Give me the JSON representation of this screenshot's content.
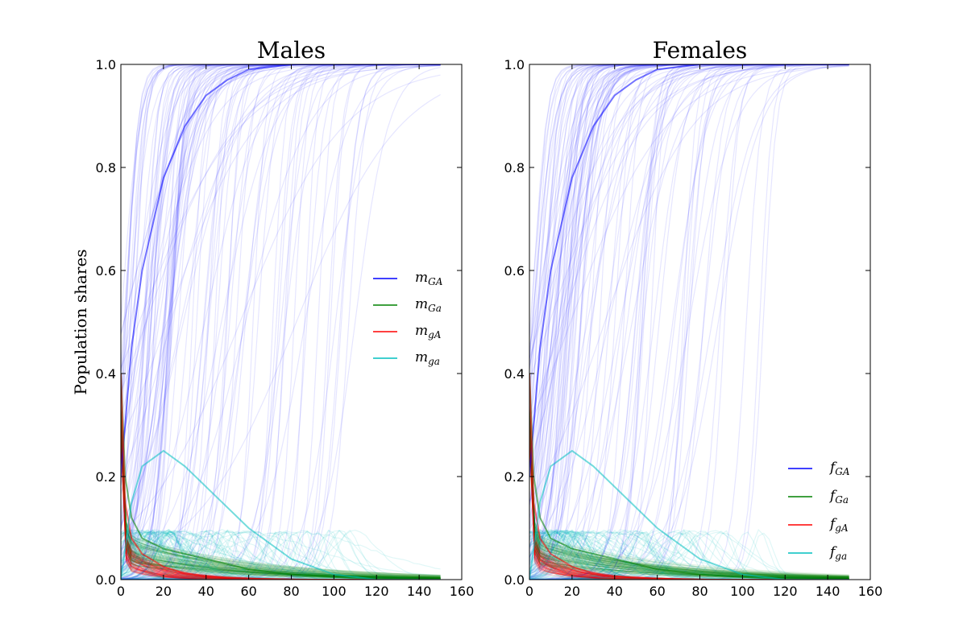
{
  "chart_data": [
    {
      "type": "line",
      "title": "Males",
      "xlabel": "",
      "ylabel": "Population shares",
      "xlim": [
        0,
        160
      ],
      "ylim": [
        0,
        1.0
      ],
      "xticks": [
        "0",
        "20",
        "40",
        "60",
        "80",
        "100",
        "120",
        "140",
        "160"
      ],
      "yticks": [
        "0.0",
        "0.2",
        "0.4",
        "0.6",
        "0.8",
        "1.0"
      ],
      "legend_position": "center-right",
      "grid": false,
      "series": [
        {
          "base": "m",
          "sub": "GA",
          "color": "#0000ff",
          "x": [
            0,
            5,
            10,
            20,
            30,
            40,
            50,
            60,
            80,
            100,
            120,
            150
          ],
          "y": [
            0.2,
            0.45,
            0.6,
            0.78,
            0.88,
            0.94,
            0.97,
            0.99,
            1.0,
            1.0,
            1.0,
            1.0
          ]
        },
        {
          "base": "m",
          "sub": "Ga",
          "color": "#008000",
          "x": [
            0,
            2,
            5,
            10,
            20,
            30,
            40,
            60,
            80,
            100,
            120,
            150
          ],
          "y": [
            0.4,
            0.2,
            0.12,
            0.08,
            0.06,
            0.05,
            0.04,
            0.02,
            0.01,
            0.005,
            0.002,
            0.0
          ]
        },
        {
          "base": "m",
          "sub": "gA",
          "color": "#ff0000",
          "x": [
            0,
            2,
            5,
            10,
            20,
            30,
            40,
            60,
            80,
            100,
            120,
            150
          ],
          "y": [
            0.4,
            0.15,
            0.08,
            0.05,
            0.025,
            0.012,
            0.006,
            0.002,
            0.0,
            0.0,
            0.0,
            0.0
          ]
        },
        {
          "base": "m",
          "sub": "ga",
          "color": "#00bfbf",
          "x": [
            0,
            5,
            10,
            20,
            30,
            40,
            60,
            80,
            100,
            120,
            150
          ],
          "y": [
            0.0,
            0.15,
            0.22,
            0.25,
            0.22,
            0.18,
            0.1,
            0.04,
            0.01,
            0.0,
            0.0
          ]
        }
      ]
    },
    {
      "type": "line",
      "title": "Females",
      "xlabel": "",
      "ylabel": "",
      "xlim": [
        0,
        160
      ],
      "ylim": [
        0,
        1.0
      ],
      "xticks": [
        "0",
        "20",
        "40",
        "60",
        "80",
        "100",
        "120",
        "140",
        "160"
      ],
      "yticks": [
        "0.0",
        "0.2",
        "0.4",
        "0.6",
        "0.8",
        "1.0"
      ],
      "legend_position": "lower-right",
      "grid": false,
      "series": [
        {
          "base": "f",
          "sub": "GA",
          "color": "#0000ff",
          "x": [
            0,
            5,
            10,
            20,
            30,
            40,
            50,
            60,
            80,
            100,
            120,
            150
          ],
          "y": [
            0.2,
            0.45,
            0.6,
            0.78,
            0.88,
            0.94,
            0.97,
            0.99,
            1.0,
            1.0,
            1.0,
            1.0
          ]
        },
        {
          "base": "f",
          "sub": "Ga",
          "color": "#008000",
          "x": [
            0,
            2,
            5,
            10,
            20,
            30,
            40,
            60,
            80,
            100,
            120,
            150
          ],
          "y": [
            0.4,
            0.2,
            0.12,
            0.08,
            0.06,
            0.05,
            0.04,
            0.02,
            0.01,
            0.005,
            0.002,
            0.0
          ]
        },
        {
          "base": "f",
          "sub": "gA",
          "color": "#ff0000",
          "x": [
            0,
            2,
            5,
            10,
            20,
            30,
            40,
            60,
            80,
            100,
            120,
            150
          ],
          "y": [
            0.4,
            0.15,
            0.08,
            0.05,
            0.025,
            0.012,
            0.006,
            0.002,
            0.0,
            0.0,
            0.0,
            0.0
          ]
        },
        {
          "base": "f",
          "sub": "ga",
          "color": "#00bfbf",
          "x": [
            0,
            5,
            10,
            20,
            30,
            40,
            60,
            80,
            100,
            120,
            150
          ],
          "y": [
            0.0,
            0.15,
            0.22,
            0.25,
            0.22,
            0.18,
            0.1,
            0.04,
            0.01,
            0.0,
            0.0
          ]
        }
      ]
    }
  ]
}
